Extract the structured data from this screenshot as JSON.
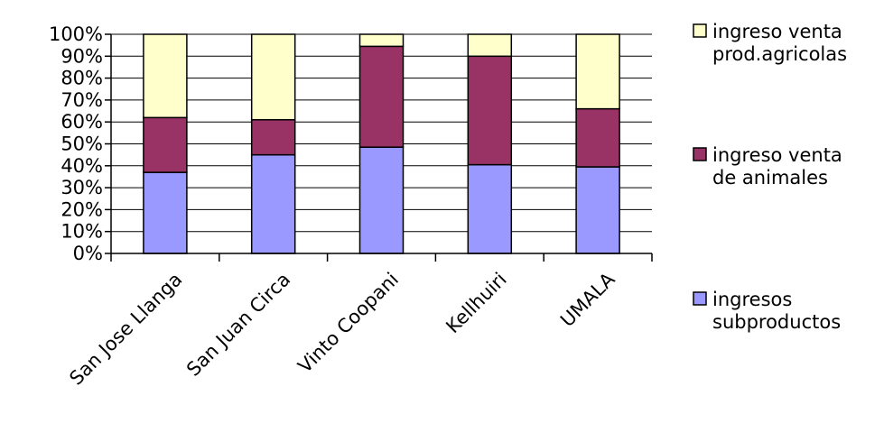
{
  "chart_data": {
    "type": "bar",
    "stacked": true,
    "percent": true,
    "categories": [
      "San Jose Llanga",
      "San Juan Circa",
      "Vinto Coopani",
      "Kellhuiri",
      "UMALA"
    ],
    "series": [
      {
        "name": "ingresos subproductos",
        "color": "#9999ff",
        "values": [
          37,
          45,
          48.5,
          40.5,
          39.5
        ]
      },
      {
        "name": "ingreso venta de animales",
        "color": "#993366",
        "values": [
          25,
          16,
          46,
          49.5,
          26.5
        ]
      },
      {
        "name": "ingreso venta prod.agricolas",
        "color": "#ffffcc",
        "values": [
          38,
          39,
          5.5,
          10,
          34
        ]
      }
    ],
    "legend_order": [
      2,
      1,
      0
    ],
    "legend_lines": [
      [
        "ingreso venta",
        "prod.agricolas"
      ],
      [
        "ingreso venta",
        "de animales"
      ],
      [
        "ingresos",
        "subproductos"
      ]
    ],
    "ylim": [
      0,
      100
    ],
    "yticks": [
      0,
      10,
      20,
      30,
      40,
      50,
      60,
      70,
      80,
      90,
      100
    ],
    "ytick_labels": [
      "0%",
      "10%",
      "20%",
      "30%",
      "40%",
      "50%",
      "60%",
      "70%",
      "80%",
      "90%",
      "100%"
    ],
    "grid": true,
    "legend_position": "right"
  }
}
